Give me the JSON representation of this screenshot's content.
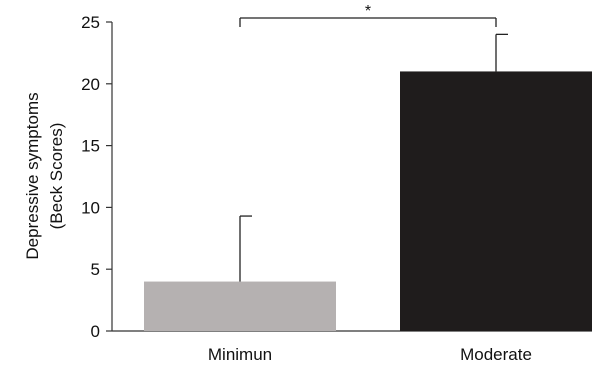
{
  "chart_data": {
    "type": "bar",
    "categories": [
      "Minimun",
      "Moderate"
    ],
    "values": [
      4,
      21
    ],
    "error_upper": [
      9.3,
      24
    ],
    "bar_colors": [
      "#b5b1b1",
      "#1f1c1c"
    ],
    "ylabel_lines": [
      "Depressive symptoms",
      "(Beck  Scores)"
    ],
    "xlabel": "",
    "ylim": [
      0,
      25
    ],
    "yticks": [
      0,
      5,
      10,
      15,
      20,
      25
    ],
    "grid": false,
    "significance": {
      "between": [
        "Minimun",
        "Moderate"
      ],
      "label": "*"
    }
  }
}
